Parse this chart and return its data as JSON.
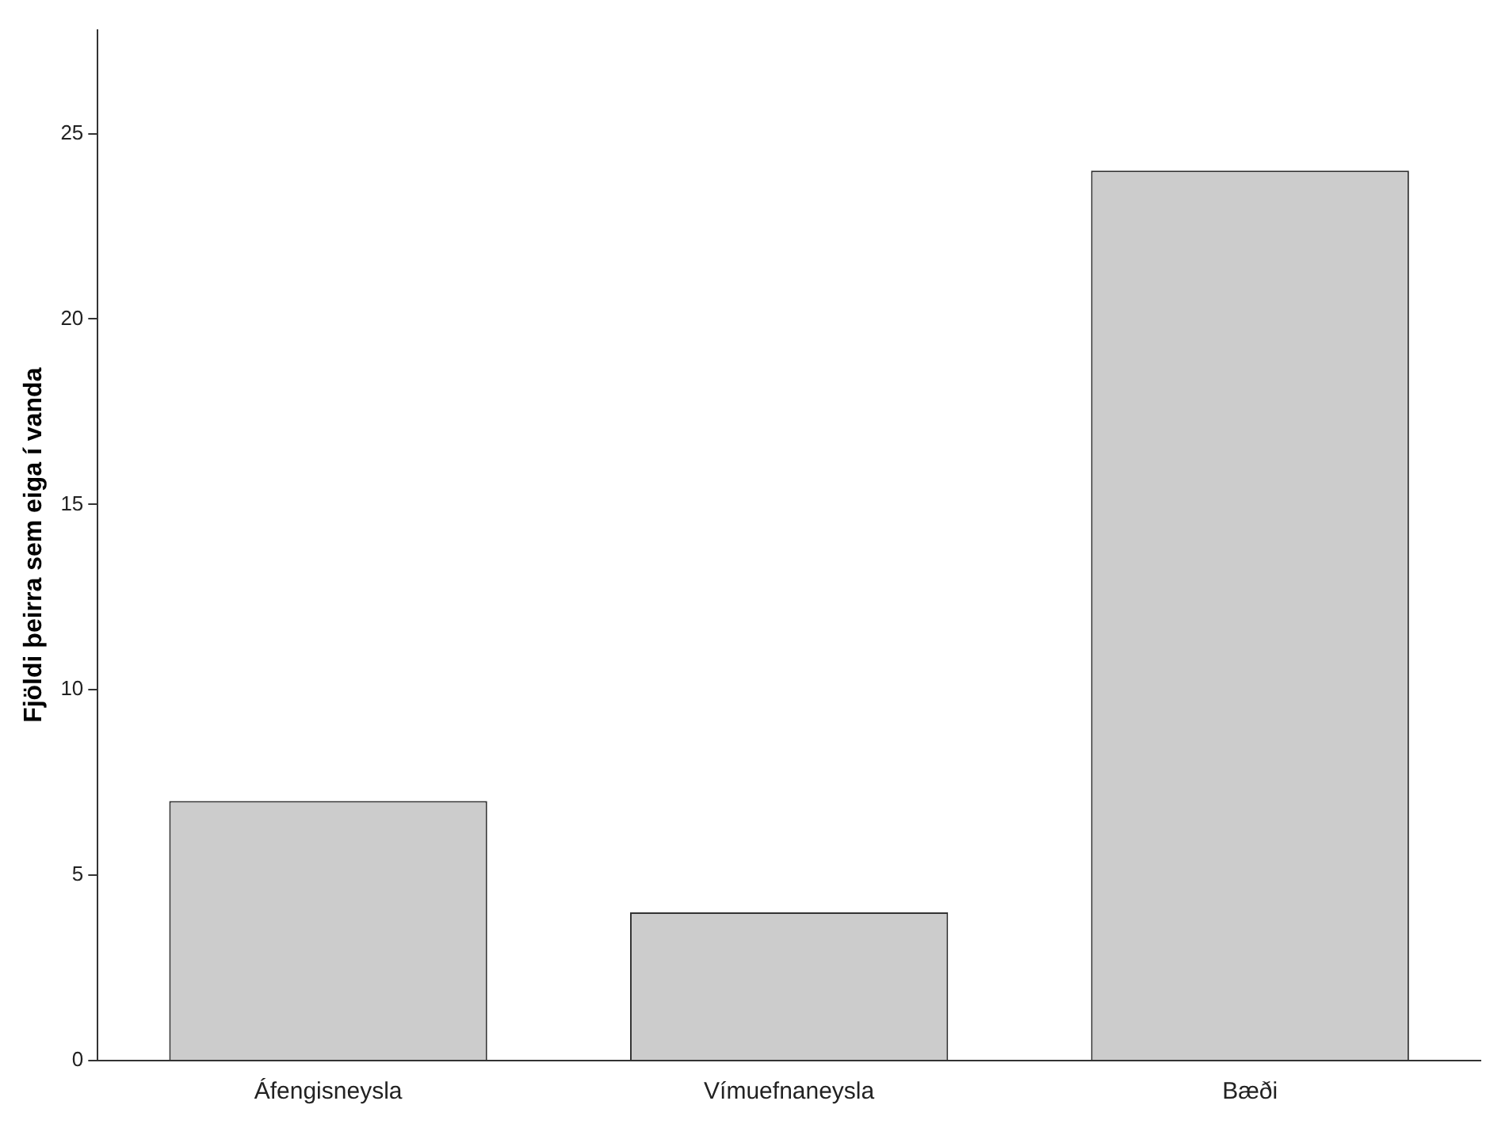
{
  "chart_data": {
    "type": "bar",
    "ylabel": "Fjöldi þeirra sem eiga í vanda",
    "categories": [
      "Áfengisneysla",
      "Vímuefnaneysla",
      "Bæði"
    ],
    "values": [
      7,
      4,
      24
    ],
    "color": "#cccccc",
    "ylim": [
      0,
      27.8
    ],
    "yticks": [
      0,
      5,
      10,
      15,
      20,
      25
    ],
    "grid": false,
    "legend": false
  }
}
